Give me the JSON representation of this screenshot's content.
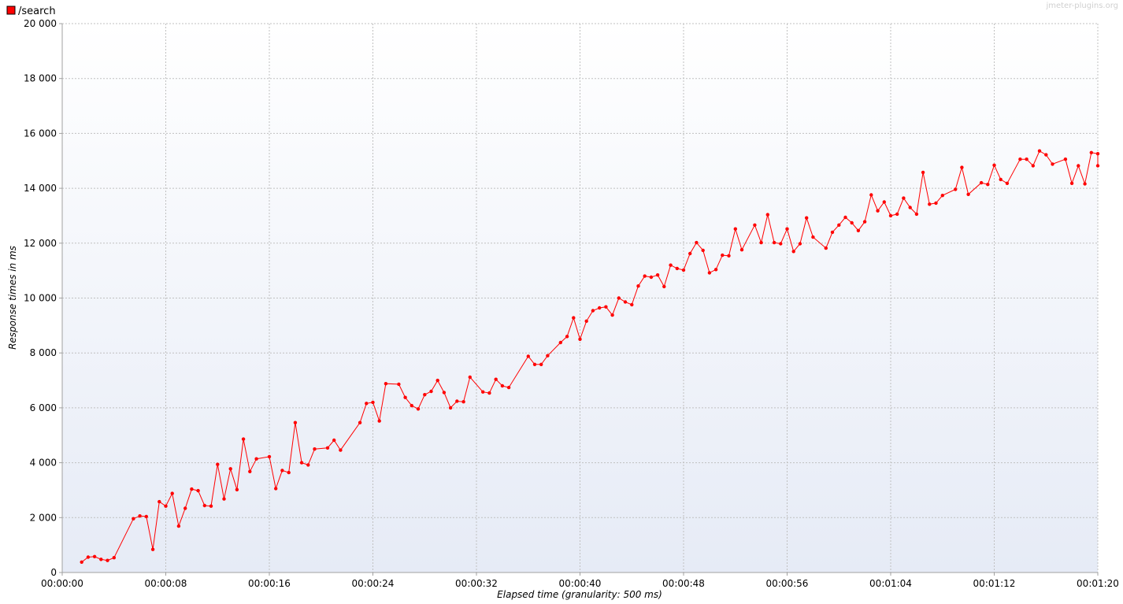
{
  "legend": {
    "series_name": "/search",
    "color": "#ff0000"
  },
  "watermark": "jmeter-plugins.org",
  "chart_data": {
    "type": "line",
    "title": "",
    "xlabel": "Elapsed time (granularity: 500 ms)",
    "ylabel": "Response times in ms",
    "xlim": [
      0,
      80
    ],
    "ylim": [
      0,
      20000
    ],
    "x_ticks": [
      0,
      8,
      16,
      24,
      32,
      40,
      48,
      56,
      64,
      72,
      80
    ],
    "x_tick_labels": [
      "00:00:00",
      "00:00:08",
      "00:00:16",
      "00:00:24",
      "00:00:32",
      "00:00:40",
      "00:00:48",
      "00:00:56",
      "00:01:04",
      "00:01:12",
      "00:01:20"
    ],
    "y_ticks": [
      0,
      2000,
      4000,
      6000,
      8000,
      10000,
      12000,
      14000,
      16000,
      18000,
      20000
    ],
    "y_tick_labels": [
      "0",
      "2 000",
      "4 000",
      "6 000",
      "8 000",
      "10 000",
      "12 000",
      "14 000",
      "16 000",
      "18 000",
      "20 000"
    ],
    "grid": true,
    "legend_position": "top-left",
    "series": [
      {
        "name": "/search",
        "color": "#ff0000",
        "points": [
          [
            1.5,
            380
          ],
          [
            2.0,
            560
          ],
          [
            2.5,
            580
          ],
          [
            3.0,
            480
          ],
          [
            3.5,
            440
          ],
          [
            4.0,
            540
          ],
          [
            5.5,
            1960
          ],
          [
            6.0,
            2060
          ],
          [
            6.5,
            2040
          ],
          [
            7.0,
            840
          ],
          [
            7.5,
            2580
          ],
          [
            8.0,
            2420
          ],
          [
            8.5,
            2880
          ],
          [
            9.0,
            1690
          ],
          [
            9.5,
            2340
          ],
          [
            10.0,
            3040
          ],
          [
            10.5,
            2980
          ],
          [
            11.0,
            2440
          ],
          [
            11.5,
            2420
          ],
          [
            12.0,
            3940
          ],
          [
            12.5,
            2680
          ],
          [
            13.0,
            3780
          ],
          [
            13.5,
            3020
          ],
          [
            14.0,
            4860
          ],
          [
            14.5,
            3680
          ],
          [
            15.0,
            4140
          ],
          [
            16.0,
            4220
          ],
          [
            16.5,
            3060
          ],
          [
            17.0,
            3720
          ],
          [
            17.5,
            3640
          ],
          [
            18.0,
            5460
          ],
          [
            18.5,
            4000
          ],
          [
            19.0,
            3920
          ],
          [
            19.5,
            4500
          ],
          [
            20.5,
            4540
          ],
          [
            21.0,
            4820
          ],
          [
            21.5,
            4460
          ],
          [
            23.0,
            5460
          ],
          [
            23.5,
            6160
          ],
          [
            24.0,
            6200
          ],
          [
            24.5,
            5520
          ],
          [
            25.0,
            6880
          ],
          [
            26.0,
            6860
          ],
          [
            26.5,
            6380
          ],
          [
            27.0,
            6080
          ],
          [
            27.5,
            5960
          ],
          [
            28.0,
            6480
          ],
          [
            28.5,
            6600
          ],
          [
            29.0,
            7000
          ],
          [
            29.5,
            6560
          ],
          [
            30.0,
            6000
          ],
          [
            30.5,
            6240
          ],
          [
            31.0,
            6220
          ],
          [
            31.5,
            7120
          ],
          [
            32.5,
            6580
          ],
          [
            33.0,
            6540
          ],
          [
            33.5,
            7040
          ],
          [
            34.0,
            6800
          ],
          [
            34.5,
            6740
          ],
          [
            36.0,
            7880
          ],
          [
            36.5,
            7580
          ],
          [
            37.0,
            7580
          ],
          [
            37.5,
            7900
          ],
          [
            38.5,
            8380
          ],
          [
            39.0,
            8600
          ],
          [
            39.5,
            9280
          ],
          [
            40.0,
            8500
          ],
          [
            40.5,
            9160
          ],
          [
            41.0,
            9540
          ],
          [
            41.5,
            9640
          ],
          [
            42.0,
            9680
          ],
          [
            42.5,
            9380
          ],
          [
            43.0,
            10000
          ],
          [
            43.5,
            9860
          ],
          [
            44.0,
            9760
          ],
          [
            44.5,
            10440
          ],
          [
            45.0,
            10800
          ],
          [
            45.5,
            10760
          ],
          [
            46.0,
            10840
          ],
          [
            46.5,
            10420
          ],
          [
            47.0,
            11200
          ],
          [
            47.5,
            11080
          ],
          [
            48.0,
            11020
          ],
          [
            48.5,
            11620
          ],
          [
            49.0,
            12020
          ],
          [
            49.5,
            11740
          ],
          [
            50.0,
            10920
          ],
          [
            50.5,
            11040
          ],
          [
            51.0,
            11560
          ],
          [
            51.5,
            11540
          ],
          [
            52.0,
            12520
          ],
          [
            52.5,
            11760
          ],
          [
            53.5,
            12660
          ],
          [
            54.0,
            12020
          ],
          [
            54.5,
            13040
          ],
          [
            55.0,
            12020
          ],
          [
            55.5,
            11980
          ],
          [
            56.0,
            12520
          ],
          [
            56.5,
            11700
          ],
          [
            57.0,
            11980
          ],
          [
            57.5,
            12920
          ],
          [
            58.0,
            12220
          ],
          [
            59.0,
            11820
          ],
          [
            59.5,
            12400
          ],
          [
            60.0,
            12660
          ],
          [
            60.5,
            12940
          ],
          [
            61.0,
            12740
          ],
          [
            61.5,
            12460
          ],
          [
            62.0,
            12780
          ],
          [
            62.5,
            13760
          ],
          [
            63.0,
            13180
          ],
          [
            63.5,
            13500
          ],
          [
            64.0,
            13000
          ],
          [
            64.5,
            13060
          ],
          [
            65.0,
            13640
          ],
          [
            65.5,
            13300
          ],
          [
            66.0,
            13060
          ],
          [
            66.5,
            14580
          ],
          [
            67.0,
            13420
          ],
          [
            67.5,
            13460
          ],
          [
            68.0,
            13740
          ],
          [
            69.0,
            13960
          ],
          [
            69.5,
            14760
          ],
          [
            70.0,
            13780
          ],
          [
            71.0,
            14200
          ],
          [
            71.5,
            14140
          ],
          [
            72.0,
            14840
          ],
          [
            72.5,
            14320
          ],
          [
            73.0,
            14180
          ],
          [
            74.0,
            15060
          ],
          [
            74.5,
            15060
          ],
          [
            75.0,
            14820
          ],
          [
            75.5,
            15360
          ],
          [
            76.0,
            15220
          ],
          [
            76.5,
            14880
          ],
          [
            77.5,
            15060
          ],
          [
            78.0,
            14180
          ],
          [
            78.5,
            14820
          ],
          [
            79.0,
            14160
          ],
          [
            79.5,
            15300
          ],
          [
            80.0,
            15260
          ],
          [
            80.5,
            14820
          ]
        ]
      }
    ]
  }
}
